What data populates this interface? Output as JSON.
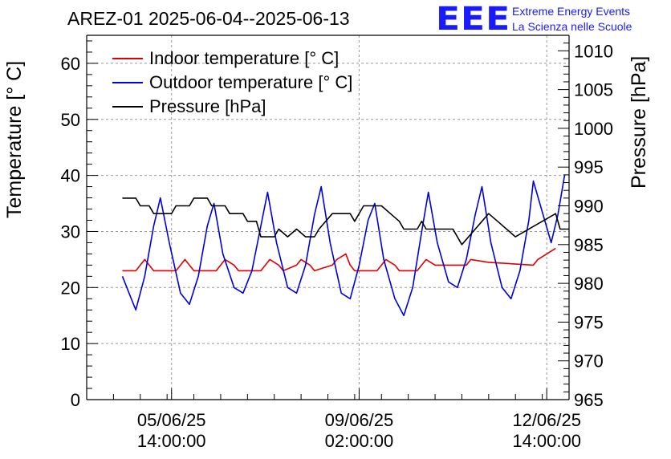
{
  "title": "AREZ-01 2025-06-04--2025-06-13",
  "logo": {
    "mark": "EEE",
    "line1": "Extreme Energy Events",
    "line2": "La Scienza nelle Scuole",
    "color": "#1a1aff"
  },
  "chart_data": {
    "type": "line",
    "title": "AREZ-01 2025-06-04--2025-06-13",
    "xlabel": "",
    "ylabel": "Temperature [° C]",
    "y2label": "Pressure [hPa]",
    "xlim": [
      "2025-06-04 00:00",
      "2025-06-13 00:00"
    ],
    "ylim": [
      0,
      65
    ],
    "y2lim": [
      965,
      1012
    ],
    "y_ticks": [
      0,
      10,
      20,
      30,
      40,
      50,
      60
    ],
    "y2_ticks": [
      965,
      970,
      975,
      980,
      985,
      990,
      995,
      1000,
      1005,
      1010
    ],
    "x_ticks": [
      {
        "x": "2025-06-05 14:00",
        "line1": "05/06/25",
        "line2": "14:00:00"
      },
      {
        "x": "2025-06-09 02:00",
        "line1": "09/06/25",
        "line2": "02:00:00"
      },
      {
        "x": "2025-06-12 14:00",
        "line1": "12/06/25",
        "line2": "14:00:00"
      }
    ],
    "grid": true,
    "legend_position": "top-left",
    "series": [
      {
        "name": "Indoor temperature [° C]",
        "axis": "left",
        "color": "#e00000",
        "points": [
          [
            "2025-06-04 16:00",
            23
          ],
          [
            "2025-06-04 22:00",
            23
          ],
          [
            "2025-06-05 00:00",
            24
          ],
          [
            "2025-06-05 02:00",
            25
          ],
          [
            "2025-06-05 04:00",
            24
          ],
          [
            "2025-06-05 06:00",
            23
          ],
          [
            "2025-06-05 16:00",
            23
          ],
          [
            "2025-06-05 18:00",
            24
          ],
          [
            "2025-06-05 20:00",
            25
          ],
          [
            "2025-06-05 22:00",
            24
          ],
          [
            "2025-06-06 00:00",
            23
          ],
          [
            "2025-06-06 10:00",
            23
          ],
          [
            "2025-06-06 12:00",
            24
          ],
          [
            "2025-06-06 14:00",
            25
          ],
          [
            "2025-06-06 18:00",
            24
          ],
          [
            "2025-06-06 20:00",
            23
          ],
          [
            "2025-06-07 06:00",
            23
          ],
          [
            "2025-06-07 08:00",
            24
          ],
          [
            "2025-06-07 10:00",
            25
          ],
          [
            "2025-06-07 14:00",
            24
          ],
          [
            "2025-06-07 16:00",
            23
          ],
          [
            "2025-06-07 22:00",
            24
          ],
          [
            "2025-06-08 00:00",
            25
          ],
          [
            "2025-06-08 04:00",
            24
          ],
          [
            "2025-06-08 06:00",
            23
          ],
          [
            "2025-06-08 14:00",
            24
          ],
          [
            "2025-06-08 16:00",
            25
          ],
          [
            "2025-06-08 20:00",
            26
          ],
          [
            "2025-06-08 22:00",
            24
          ],
          [
            "2025-06-09 00:00",
            23
          ],
          [
            "2025-06-09 10:00",
            23
          ],
          [
            "2025-06-09 12:00",
            24
          ],
          [
            "2025-06-09 14:00",
            25
          ],
          [
            "2025-06-09 18:00",
            24
          ],
          [
            "2025-06-09 20:00",
            23
          ],
          [
            "2025-06-10 04:00",
            23
          ],
          [
            "2025-06-10 06:00",
            24
          ],
          [
            "2025-06-10 08:00",
            25
          ],
          [
            "2025-06-10 12:00",
            24
          ],
          [
            "2025-06-11 02:00",
            24
          ],
          [
            "2025-06-11 04:00",
            25
          ],
          [
            "2025-06-11 12:00",
            24.5
          ],
          [
            "2025-06-12 08:00",
            24
          ],
          [
            "2025-06-12 10:00",
            25
          ],
          [
            "2025-06-12 14:00",
            26
          ],
          [
            "2025-06-12 18:00",
            27
          ]
        ]
      },
      {
        "name": "Outdoor temperature [° C]",
        "axis": "left",
        "color": "#0000e0",
        "points": [
          [
            "2025-06-04 16:00",
            22
          ],
          [
            "2025-06-04 20:00",
            18
          ],
          [
            "2025-06-04 22:00",
            16
          ],
          [
            "2025-06-05 02:00",
            22
          ],
          [
            "2025-06-05 06:00",
            31
          ],
          [
            "2025-06-05 09:00",
            36
          ],
          [
            "2025-06-05 13:00",
            28
          ],
          [
            "2025-06-05 18:00",
            19
          ],
          [
            "2025-06-05 22:00",
            17
          ],
          [
            "2025-06-06 02:00",
            22
          ],
          [
            "2025-06-06 06:00",
            31
          ],
          [
            "2025-06-06 09:00",
            35
          ],
          [
            "2025-06-06 13:00",
            26
          ],
          [
            "2025-06-06 18:00",
            20
          ],
          [
            "2025-06-06 22:00",
            19
          ],
          [
            "2025-06-07 02:00",
            23
          ],
          [
            "2025-06-07 06:00",
            31
          ],
          [
            "2025-06-07 09:00",
            37
          ],
          [
            "2025-06-07 13:00",
            28
          ],
          [
            "2025-06-07 18:00",
            20
          ],
          [
            "2025-06-07 22:00",
            19
          ],
          [
            "2025-06-08 02:00",
            24
          ],
          [
            "2025-06-08 06:00",
            33
          ],
          [
            "2025-06-08 09:00",
            38
          ],
          [
            "2025-06-08 13:00",
            28
          ],
          [
            "2025-06-08 18:00",
            19
          ],
          [
            "2025-06-08 22:00",
            18
          ],
          [
            "2025-06-09 02:00",
            24
          ],
          [
            "2025-06-09 06:00",
            32
          ],
          [
            "2025-06-09 09:00",
            35
          ],
          [
            "2025-06-09 13:00",
            25
          ],
          [
            "2025-06-09 18:00",
            18
          ],
          [
            "2025-06-09 22:00",
            15
          ],
          [
            "2025-06-10 02:00",
            20
          ],
          [
            "2025-06-10 06:00",
            30
          ],
          [
            "2025-06-10 09:00",
            37
          ],
          [
            "2025-06-10 13:00",
            28
          ],
          [
            "2025-06-10 18:00",
            21
          ],
          [
            "2025-06-10 22:00",
            20
          ],
          [
            "2025-06-11 02:00",
            25
          ],
          [
            "2025-06-11 06:00",
            33
          ],
          [
            "2025-06-11 09:00",
            38
          ],
          [
            "2025-06-11 13:00",
            28
          ],
          [
            "2025-06-11 18:00",
            20
          ],
          [
            "2025-06-11 22:00",
            18
          ],
          [
            "2025-06-12 02:00",
            23
          ],
          [
            "2025-06-12 06:00",
            32
          ],
          [
            "2025-06-12 08:00",
            39
          ],
          [
            "2025-06-12 16:00",
            28
          ],
          [
            "2025-06-12 19:00",
            33
          ],
          [
            "2025-06-12 22:00",
            40
          ]
        ]
      },
      {
        "name": "Pressure [hPa]",
        "axis": "right",
        "color": "#000000",
        "points": [
          [
            "2025-06-04 16:00",
            991
          ],
          [
            "2025-06-04 22:00",
            991
          ],
          [
            "2025-06-05 00:00",
            990
          ],
          [
            "2025-06-05 04:00",
            990
          ],
          [
            "2025-06-05 06:00",
            989
          ],
          [
            "2025-06-05 14:00",
            989
          ],
          [
            "2025-06-05 16:00",
            990
          ],
          [
            "2025-06-05 22:00",
            990
          ],
          [
            "2025-06-06 00:00",
            991
          ],
          [
            "2025-06-06 06:00",
            991
          ],
          [
            "2025-06-06 08:00",
            990
          ],
          [
            "2025-06-06 14:00",
            990
          ],
          [
            "2025-06-06 16:00",
            989
          ],
          [
            "2025-06-06 22:00",
            989
          ],
          [
            "2025-06-07 00:00",
            988
          ],
          [
            "2025-06-07 04:00",
            988
          ],
          [
            "2025-06-07 06:00",
            986
          ],
          [
            "2025-06-07 12:00",
            986
          ],
          [
            "2025-06-07 14:00",
            987
          ],
          [
            "2025-06-07 18:00",
            986
          ],
          [
            "2025-06-07 22:00",
            987
          ],
          [
            "2025-06-08 02:00",
            986
          ],
          [
            "2025-06-08 06:00",
            986
          ],
          [
            "2025-06-08 08:00",
            987
          ],
          [
            "2025-06-08 14:00",
            989
          ],
          [
            "2025-06-08 22:00",
            989
          ],
          [
            "2025-06-09 00:00",
            988
          ],
          [
            "2025-06-09 04:00",
            990
          ],
          [
            "2025-06-09 12:00",
            990
          ],
          [
            "2025-06-09 16:00",
            989
          ],
          [
            "2025-06-09 20:00",
            988
          ],
          [
            "2025-06-09 22:00",
            987
          ],
          [
            "2025-06-10 04:00",
            987
          ],
          [
            "2025-06-10 06:00",
            988
          ],
          [
            "2025-06-10 08:00",
            987
          ],
          [
            "2025-06-10 14:00",
            987
          ],
          [
            "2025-06-10 20:00",
            987
          ],
          [
            "2025-06-11 00:00",
            985
          ],
          [
            "2025-06-11 06:00",
            987
          ],
          [
            "2025-06-11 12:00",
            989
          ],
          [
            "2025-06-11 16:00",
            988
          ],
          [
            "2025-06-11 20:00",
            987
          ],
          [
            "2025-06-12 00:00",
            986
          ],
          [
            "2025-06-12 12:00",
            988
          ],
          [
            "2025-06-12 18:00",
            989
          ],
          [
            "2025-06-12 20:00",
            987
          ],
          [
            "2025-06-13 00:00",
            987
          ]
        ]
      }
    ]
  }
}
